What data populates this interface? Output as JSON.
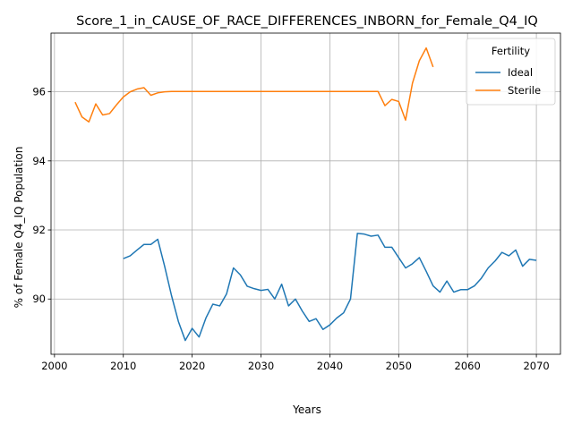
{
  "chart_data": {
    "type": "line",
    "title": "Score_1_in_CAUSE_OF_RACE_DIFFERENCES_INBORN_for_Female_Q4_IQ",
    "xlabel": "Years",
    "ylabel": "% of Female Q4_IQ Population",
    "xlim": [
      1999.5,
      2073.5
    ],
    "ylim": [
      88.4,
      97.7
    ],
    "xticks": [
      2000,
      2010,
      2020,
      2030,
      2040,
      2050,
      2060,
      2070
    ],
    "yticks": [
      90,
      92,
      94,
      96
    ],
    "grid": true,
    "legend": {
      "title": "Fertility",
      "placement": "top-right"
    },
    "series": [
      {
        "name": "Ideal",
        "color": "#1f77b4",
        "x": [
          2010,
          2011,
          2012,
          2013,
          2014,
          2015,
          2016,
          2017,
          2018,
          2019,
          2020,
          2021,
          2022,
          2023,
          2024,
          2025,
          2026,
          2027,
          2028,
          2029,
          2030,
          2031,
          2032,
          2033,
          2034,
          2035,
          2036,
          2037,
          2038,
          2039,
          2040,
          2041,
          2042,
          2043,
          2044,
          2045,
          2046,
          2047,
          2048,
          2049,
          2050,
          2051,
          2052,
          2053,
          2054,
          2055,
          2056,
          2057,
          2058,
          2059,
          2060,
          2061,
          2062,
          2063,
          2064,
          2065,
          2066,
          2067,
          2068,
          2069,
          2070
        ],
        "y": [
          91.17,
          91.25,
          91.42,
          91.58,
          91.58,
          91.73,
          90.95,
          90.1,
          89.35,
          88.8,
          89.15,
          88.9,
          89.45,
          89.85,
          89.8,
          90.15,
          90.9,
          90.7,
          90.37,
          90.3,
          90.25,
          90.28,
          90.0,
          90.43,
          89.8,
          90.0,
          89.65,
          89.35,
          89.43,
          89.12,
          89.25,
          89.45,
          89.6,
          90.0,
          91.9,
          91.88,
          91.82,
          91.85,
          91.5,
          91.5,
          91.2,
          90.9,
          91.02,
          91.2,
          90.8,
          90.38,
          90.2,
          90.52,
          90.2,
          90.27,
          90.27,
          90.38,
          90.6,
          90.9,
          91.1,
          91.35,
          91.25,
          91.42,
          90.95,
          91.15,
          91.12
        ]
      },
      {
        "name": "Sterile",
        "color": "#ff7f0e",
        "x": [
          2003,
          2004,
          2005,
          2006,
          2007,
          2008,
          2009,
          2010,
          2011,
          2012,
          2013,
          2014,
          2015,
          2016,
          2017,
          2018,
          2019,
          2020,
          2025,
          2030,
          2035,
          2040,
          2045,
          2046,
          2047,
          2048,
          2049,
          2050,
          2051,
          2052,
          2053,
          2054,
          2055
        ],
        "y": [
          95.7,
          95.27,
          95.13,
          95.65,
          95.33,
          95.37,
          95.62,
          95.85,
          96.0,
          96.08,
          96.12,
          95.9,
          95.97,
          96.0,
          96.01,
          96.01,
          96.01,
          96.01,
          96.01,
          96.01,
          96.01,
          96.01,
          96.01,
          96.01,
          96.01,
          95.6,
          95.78,
          95.72,
          95.18,
          96.25,
          96.9,
          97.27,
          96.72
        ]
      }
    ]
  }
}
